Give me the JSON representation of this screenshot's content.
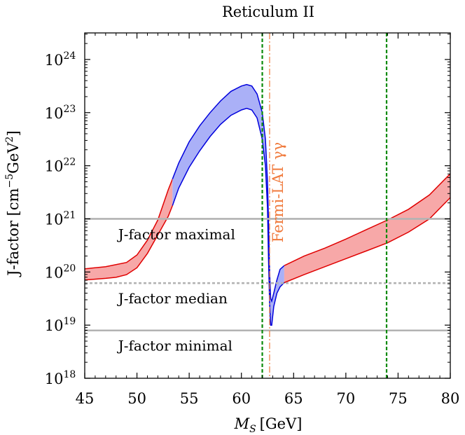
{
  "chart_data": {
    "type": "area",
    "title": "Reticulum II",
    "xlabel_main": "M",
    "xlabel_sub": "S",
    "xlabel_unit": "[GeV]",
    "ylabel_main": "J-factor [cm",
    "ylabel_exp1": "−5",
    "ylabel_mid": "GeV",
    "ylabel_exp2": "2",
    "ylabel_end": "]",
    "xlim": [
      45,
      80
    ],
    "ylim_log10": [
      18,
      24.5
    ],
    "log_y": true,
    "x_ticks": [
      45,
      50,
      55,
      60,
      65,
      70,
      75,
      80
    ],
    "x_tick_labels": [
      "45",
      "50",
      "55",
      "60",
      "65",
      "70",
      "75",
      "80"
    ],
    "y_ticks_log10": [
      18,
      19,
      20,
      21,
      22,
      23,
      24
    ],
    "y_tick_base": "10",
    "y_tick_exps": [
      "18",
      "19",
      "20",
      "21",
      "22",
      "23",
      "24"
    ],
    "hlines": [
      {
        "name": "J-factor maximal",
        "value_log10": 21.0,
        "style": "solid",
        "color": "#b3b3b3",
        "label": "J-factor maximal",
        "label_x": 48.2
      },
      {
        "name": "J-factor median",
        "value_log10": 19.79,
        "style": "dashed",
        "color": "#b3b3b3",
        "label": "J-factor median",
        "label_x": 48.2
      },
      {
        "name": "J-factor minimal",
        "value_log10": 18.9,
        "style": "solid",
        "color": "#b3b3b3",
        "label": "J-factor minimal",
        "label_x": 48.2
      }
    ],
    "vlines": [
      {
        "x": 62.0,
        "color": "#0a8a0a",
        "style": "dashed"
      },
      {
        "x": 62.7,
        "color": "#f07a3c",
        "style": "dashdot",
        "label": "Fermi-LAT γγ"
      },
      {
        "x": 73.9,
        "color": "#0a8a0a",
        "style": "dashed"
      }
    ],
    "series": [
      {
        "color_fill": "#f7a8a8",
        "color_line": "#e00000",
        "upper": [
          [
            45,
            20.06
          ],
          [
            47,
            20.1
          ],
          [
            49,
            20.18
          ],
          [
            50,
            20.32
          ],
          [
            51,
            20.6
          ],
          [
            52,
            20.98
          ],
          [
            53,
            21.55
          ],
          [
            53.4,
            21.75
          ]
        ],
        "lower": [
          [
            45,
            19.85
          ],
          [
            47,
            19.88
          ],
          [
            48,
            19.9
          ],
          [
            49,
            19.95
          ],
          [
            50,
            20.08
          ],
          [
            51,
            20.35
          ],
          [
            52,
            20.7
          ],
          [
            53,
            21.05
          ],
          [
            53.4,
            21.25
          ]
        ]
      },
      {
        "color_fill": "#aab0f7",
        "color_line": "#0000dd",
        "upper": [
          [
            53.4,
            21.75
          ],
          [
            54,
            22.05
          ],
          [
            55,
            22.45
          ],
          [
            56,
            22.75
          ],
          [
            57,
            23.0
          ],
          [
            58,
            23.22
          ],
          [
            59,
            23.4
          ],
          [
            60,
            23.5
          ],
          [
            60.5,
            23.53
          ],
          [
            61,
            23.5
          ],
          [
            61.5,
            23.35
          ],
          [
            62,
            23.0
          ],
          [
            62.3,
            22.5
          ],
          [
            62.5,
            21.7
          ],
          [
            62.6,
            20.9
          ],
          [
            62.7,
            20.0
          ],
          [
            62.8,
            19.5
          ],
          [
            62.9,
            19.45
          ],
          [
            63.1,
            19.6
          ],
          [
            63.4,
            19.85
          ],
          [
            63.7,
            20.05
          ],
          [
            64.1,
            20.12
          ]
        ],
        "lower": [
          [
            53.4,
            21.25
          ],
          [
            54,
            21.58
          ],
          [
            55,
            21.97
          ],
          [
            56,
            22.28
          ],
          [
            57,
            22.55
          ],
          [
            58,
            22.78
          ],
          [
            59,
            22.95
          ],
          [
            60,
            23.05
          ],
          [
            60.5,
            23.08
          ],
          [
            61,
            23.05
          ],
          [
            61.5,
            22.9
          ],
          [
            62,
            22.5
          ],
          [
            62.3,
            22.0
          ],
          [
            62.5,
            21.2
          ],
          [
            62.6,
            20.2
          ],
          [
            62.7,
            19.4
          ],
          [
            62.8,
            19.0
          ],
          [
            62.9,
            19.0
          ],
          [
            63.1,
            19.35
          ],
          [
            63.4,
            19.6
          ],
          [
            63.7,
            19.72
          ],
          [
            64.1,
            19.8
          ]
        ]
      },
      {
        "color_fill": "#f7a8a8",
        "color_line": "#e00000",
        "upper": [
          [
            64.1,
            20.12
          ],
          [
            66,
            20.3
          ],
          [
            68,
            20.45
          ],
          [
            70,
            20.62
          ],
          [
            72,
            20.8
          ],
          [
            74,
            20.98
          ],
          [
            76,
            21.18
          ],
          [
            78,
            21.45
          ],
          [
            80,
            21.85
          ]
        ],
        "lower": [
          [
            64.1,
            19.8
          ],
          [
            66,
            19.95
          ],
          [
            68,
            20.1
          ],
          [
            70,
            20.25
          ],
          [
            72,
            20.4
          ],
          [
            74,
            20.55
          ],
          [
            76,
            20.75
          ],
          [
            78,
            21.0
          ],
          [
            80,
            21.4
          ]
        ]
      }
    ]
  }
}
